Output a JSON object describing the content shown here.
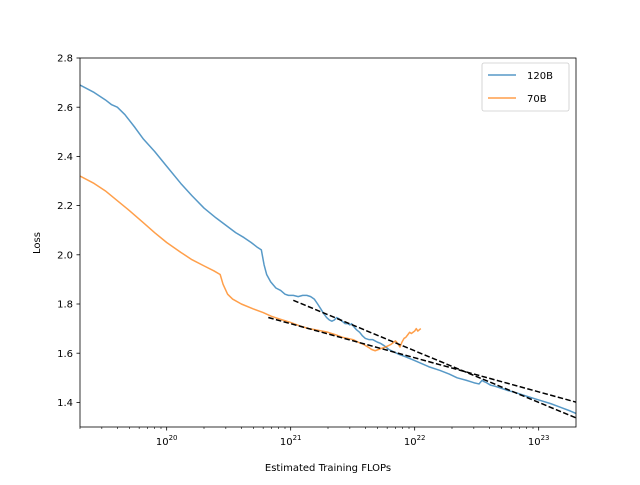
{
  "chart_data": {
    "type": "line",
    "xscale": "log",
    "xlabel": "Estimated Training FLOPs",
    "ylabel": "Loss",
    "xlim": [
      2e+19,
      2e+23
    ],
    "ylim": [
      1.3,
      2.8
    ],
    "x_ticks": [
      {
        "value": 1e+20,
        "base": "10",
        "exp": "20"
      },
      {
        "value": 1e+21,
        "base": "10",
        "exp": "21"
      },
      {
        "value": 1e+22,
        "base": "10",
        "exp": "22"
      },
      {
        "value": 1e+23,
        "base": "10",
        "exp": "23"
      }
    ],
    "y_ticks": [
      "1.4",
      "1.6",
      "1.8",
      "2.0",
      "2.2",
      "2.4",
      "2.6",
      "2.8"
    ],
    "grid": false,
    "legend_position": "upper right",
    "series": [
      {
        "name": "120B",
        "color": "#1f77b4",
        "points": [
          [
            2e+19,
            2.69
          ],
          [
            2.6e+19,
            2.66
          ],
          [
            3.2e+19,
            2.63
          ],
          [
            3.6e+19,
            2.61
          ],
          [
            4e+19,
            2.6
          ],
          [
            4.6e+19,
            2.57
          ],
          [
            5.5e+19,
            2.52
          ],
          [
            6.5e+19,
            2.47
          ],
          [
            8e+19,
            2.42
          ],
          [
            1e+20,
            2.36
          ],
          [
            1.3e+20,
            2.29
          ],
          [
            1.6e+20,
            2.24
          ],
          [
            2e+20,
            2.19
          ],
          [
            2.5e+20,
            2.15
          ],
          [
            3e+20,
            2.12
          ],
          [
            3.6e+20,
            2.09
          ],
          [
            4.2e+20,
            2.07
          ],
          [
            4.8e+20,
            2.05
          ],
          [
            5.4e+20,
            2.03
          ],
          [
            5.8e+20,
            2.02
          ],
          [
            6.1e+20,
            1.96
          ],
          [
            6.4e+20,
            1.92
          ],
          [
            6.9e+20,
            1.89
          ],
          [
            7.6e+20,
            1.865
          ],
          [
            8.3e+20,
            1.855
          ],
          [
            9e+20,
            1.84
          ],
          [
            9.6e+20,
            1.835
          ],
          [
            1.05e+21,
            1.835
          ],
          [
            1.15e+21,
            1.83
          ],
          [
            1.25e+21,
            1.835
          ],
          [
            1.35e+21,
            1.835
          ],
          [
            1.45e+21,
            1.83
          ],
          [
            1.55e+21,
            1.82
          ],
          [
            1.65e+21,
            1.8
          ],
          [
            1.75e+21,
            1.78
          ],
          [
            1.85e+21,
            1.76
          ],
          [
            1.95e+21,
            1.745
          ],
          [
            2.05e+21,
            1.735
          ],
          [
            2.15e+21,
            1.73
          ],
          [
            2.25e+21,
            1.735
          ],
          [
            2.35e+21,
            1.745
          ],
          [
            2.45e+21,
            1.74
          ],
          [
            2.6e+21,
            1.73
          ],
          [
            2.75e+21,
            1.72
          ],
          [
            2.9e+21,
            1.72
          ],
          [
            3e+21,
            1.715
          ],
          [
            3.1e+21,
            1.72
          ],
          [
            3.2e+21,
            1.71
          ],
          [
            3.4e+21,
            1.695
          ],
          [
            3.6e+21,
            1.685
          ],
          [
            3.8e+21,
            1.67
          ],
          [
            4e+21,
            1.66
          ],
          [
            4.3e+21,
            1.655
          ],
          [
            4.6e+21,
            1.655
          ],
          [
            5e+21,
            1.645
          ],
          [
            5.3e+21,
            1.64
          ],
          [
            5.7e+21,
            1.63
          ],
          [
            6.2e+21,
            1.615
          ],
          [
            6.8e+21,
            1.605
          ],
          [
            7.5e+21,
            1.595
          ],
          [
            8.5e+21,
            1.585
          ],
          [
            1e+22,
            1.57
          ],
          [
            1.3e+22,
            1.545
          ],
          [
            1.6e+22,
            1.53
          ],
          [
            1.9e+22,
            1.515
          ],
          [
            2.2e+22,
            1.5
          ],
          [
            2.6e+22,
            1.49
          ],
          [
            3e+22,
            1.48
          ],
          [
            3.3e+22,
            1.475
          ],
          [
            3.5e+22,
            1.49
          ],
          [
            3.6e+22,
            1.485
          ],
          [
            3.8e+22,
            1.48
          ],
          [
            4.1e+22,
            1.47
          ],
          [
            4.5e+22,
            1.465
          ],
          [
            5.5e+22,
            1.45
          ],
          [
            6.5e+22,
            1.44
          ],
          [
            8e+22,
            1.425
          ],
          [
            1e+23,
            1.41
          ],
          [
            1.25e+23,
            1.395
          ],
          [
            1.5e+23,
            1.38
          ],
          [
            1.8e+23,
            1.365
          ],
          [
            2e+23,
            1.355
          ],
          [
            2.3e+23,
            1.345
          ],
          [
            2.6e+23,
            1.335
          ],
          [
            2.9e+23,
            1.325
          ]
        ]
      },
      {
        "name": "70B",
        "color": "#ff7f0e",
        "points": [
          [
            2e+19,
            2.32
          ],
          [
            2.6e+19,
            2.29
          ],
          [
            3.2e+19,
            2.26
          ],
          [
            4e+19,
            2.22
          ],
          [
            5e+19,
            2.18
          ],
          [
            6.5e+19,
            2.13
          ],
          [
            8e+19,
            2.09
          ],
          [
            1e+20,
            2.05
          ],
          [
            1.3e+20,
            2.01
          ],
          [
            1.6e+20,
            1.98
          ],
          [
            2e+20,
            1.955
          ],
          [
            2.4e+20,
            1.935
          ],
          [
            2.7e+20,
            1.92
          ],
          [
            2.85e+20,
            1.88
          ],
          [
            3.1e+20,
            1.84
          ],
          [
            3.4e+20,
            1.82
          ],
          [
            4e+20,
            1.8
          ],
          [
            5e+20,
            1.78
          ],
          [
            6e+20,
            1.765
          ],
          [
            7e+20,
            1.75
          ],
          [
            8e+20,
            1.74
          ],
          [
            1e+21,
            1.725
          ],
          [
            1.2e+21,
            1.71
          ],
          [
            1.4e+21,
            1.7
          ],
          [
            1.6e+21,
            1.695
          ],
          [
            1.8e+21,
            1.69
          ],
          [
            2e+21,
            1.685
          ],
          [
            2.3e+21,
            1.675
          ],
          [
            2.6e+21,
            1.665
          ],
          [
            2.9e+21,
            1.66
          ],
          [
            3.2e+21,
            1.655
          ],
          [
            3.5e+21,
            1.645
          ],
          [
            3.9e+21,
            1.635
          ],
          [
            4.2e+21,
            1.625
          ],
          [
            4.5e+21,
            1.615
          ],
          [
            4.8e+21,
            1.61
          ],
          [
            5.1e+21,
            1.615
          ],
          [
            5.4e+21,
            1.62
          ],
          [
            5.8e+21,
            1.625
          ],
          [
            6.1e+21,
            1.63
          ],
          [
            6.4e+21,
            1.635
          ],
          [
            6.8e+21,
            1.645
          ],
          [
            7e+21,
            1.65
          ],
          [
            7.3e+21,
            1.64
          ],
          [
            7.6e+21,
            1.625
          ],
          [
            7.9e+21,
            1.645
          ],
          [
            8.2e+21,
            1.66
          ],
          [
            8.5e+21,
            1.665
          ],
          [
            8.8e+21,
            1.675
          ],
          [
            9.1e+21,
            1.685
          ],
          [
            9.4e+21,
            1.68
          ],
          [
            9.7e+21,
            1.685
          ],
          [
            1e+22,
            1.69
          ],
          [
            1.03e+22,
            1.7
          ],
          [
            1.06e+22,
            1.69
          ],
          [
            1.09e+22,
            1.695
          ],
          [
            1.12e+22,
            1.7
          ]
        ]
      }
    ],
    "fit_lines": [
      {
        "style": "dashed",
        "color": "#000000",
        "points": [
          [
            1.05e+21,
            1.815
          ],
          [
            3e+23,
            1.3
          ]
        ]
      },
      {
        "style": "dashed",
        "color": "#000000",
        "points": [
          [
            6.6e+20,
            1.745
          ],
          [
            6e+23,
            1.335
          ]
        ]
      }
    ]
  }
}
